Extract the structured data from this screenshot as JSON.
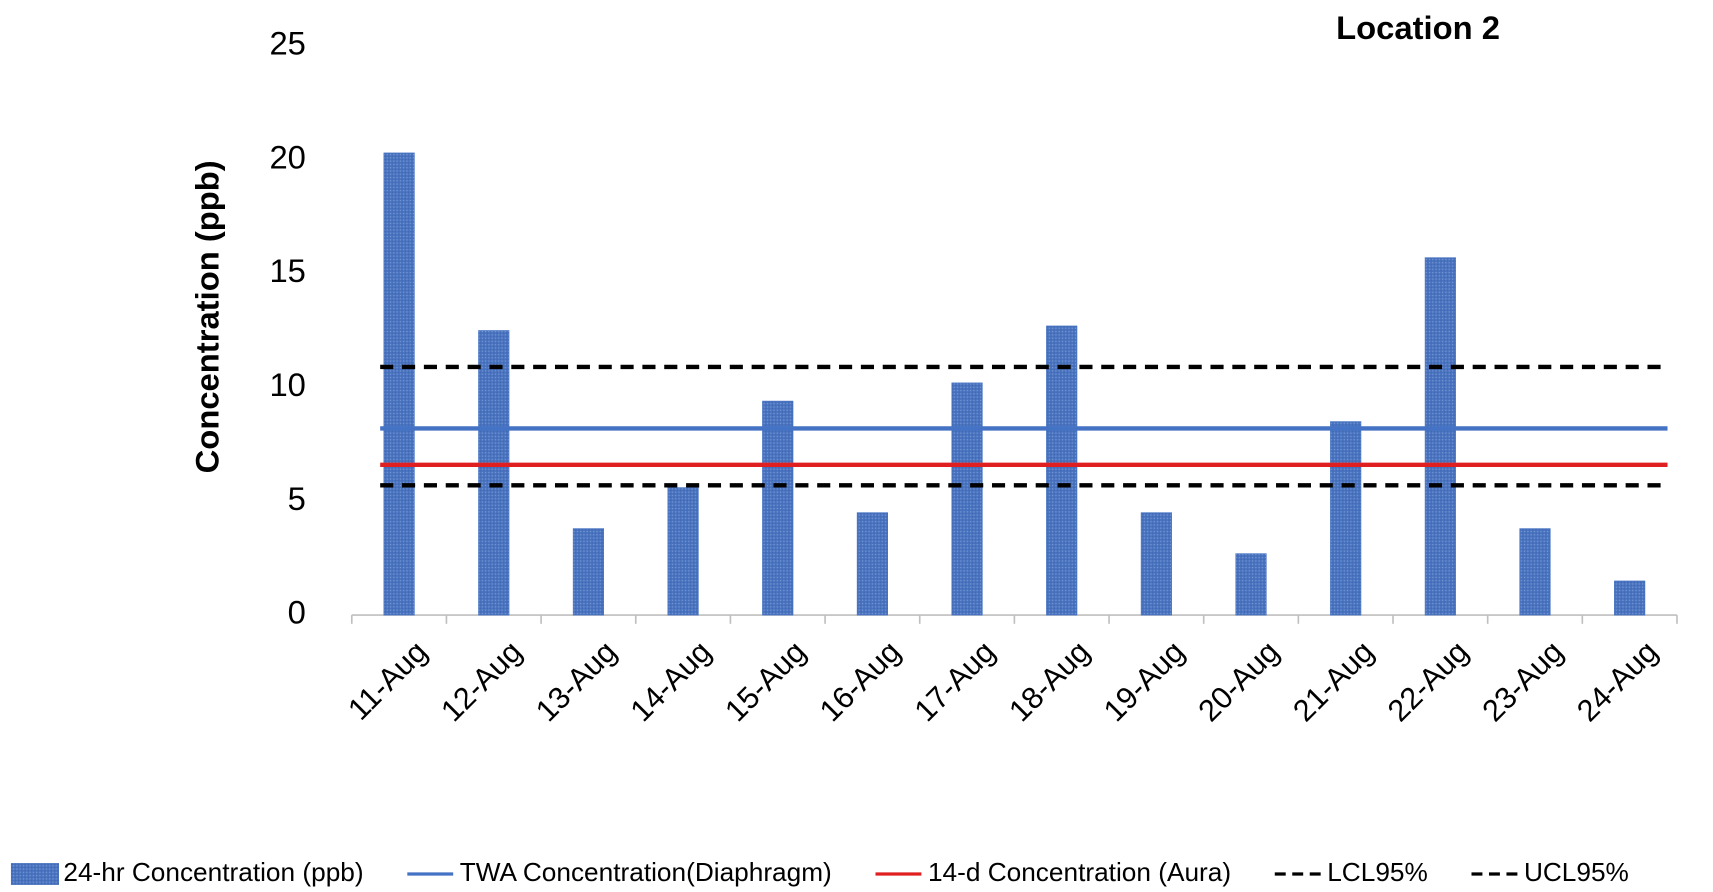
{
  "chart_data": {
    "type": "bar",
    "title": "Location 2",
    "y_label": "Concentration (ppb)",
    "categories": [
      "11-Aug",
      "12-Aug",
      "13-Aug",
      "14-Aug",
      "15-Aug",
      "16-Aug",
      "17-Aug",
      "18-Aug",
      "19-Aug",
      "20-Aug",
      "21-Aug",
      "22-Aug",
      "23-Aug",
      "24-Aug"
    ],
    "series": [
      {
        "name": "24-hr Concentration (ppb)",
        "color": "#4472c4",
        "values": [
          20.3,
          12.5,
          3.8,
          5.6,
          9.4,
          4.5,
          10.2,
          12.7,
          4.5,
          2.7,
          8.5,
          15.7,
          3.8,
          1.5
        ]
      }
    ],
    "hlines": [
      {
        "name": "TWA Concentration(Diaphragm)",
        "color": "#4472c4",
        "value": 8.2,
        "dashed": false
      },
      {
        "name": "14-d Concentration (Aura)",
        "color": "#e02020",
        "value": 6.6,
        "dashed": false
      },
      {
        "name": "LCL95%",
        "color": "#000000",
        "value": 5.7,
        "dashed": true
      },
      {
        "name": "UCL95%",
        "color": "#000000",
        "value": 10.9,
        "dashed": true
      }
    ],
    "ylim": [
      0,
      25
    ],
    "yticks": [
      0,
      5,
      10,
      15,
      20,
      25
    ],
    "grid": false
  }
}
